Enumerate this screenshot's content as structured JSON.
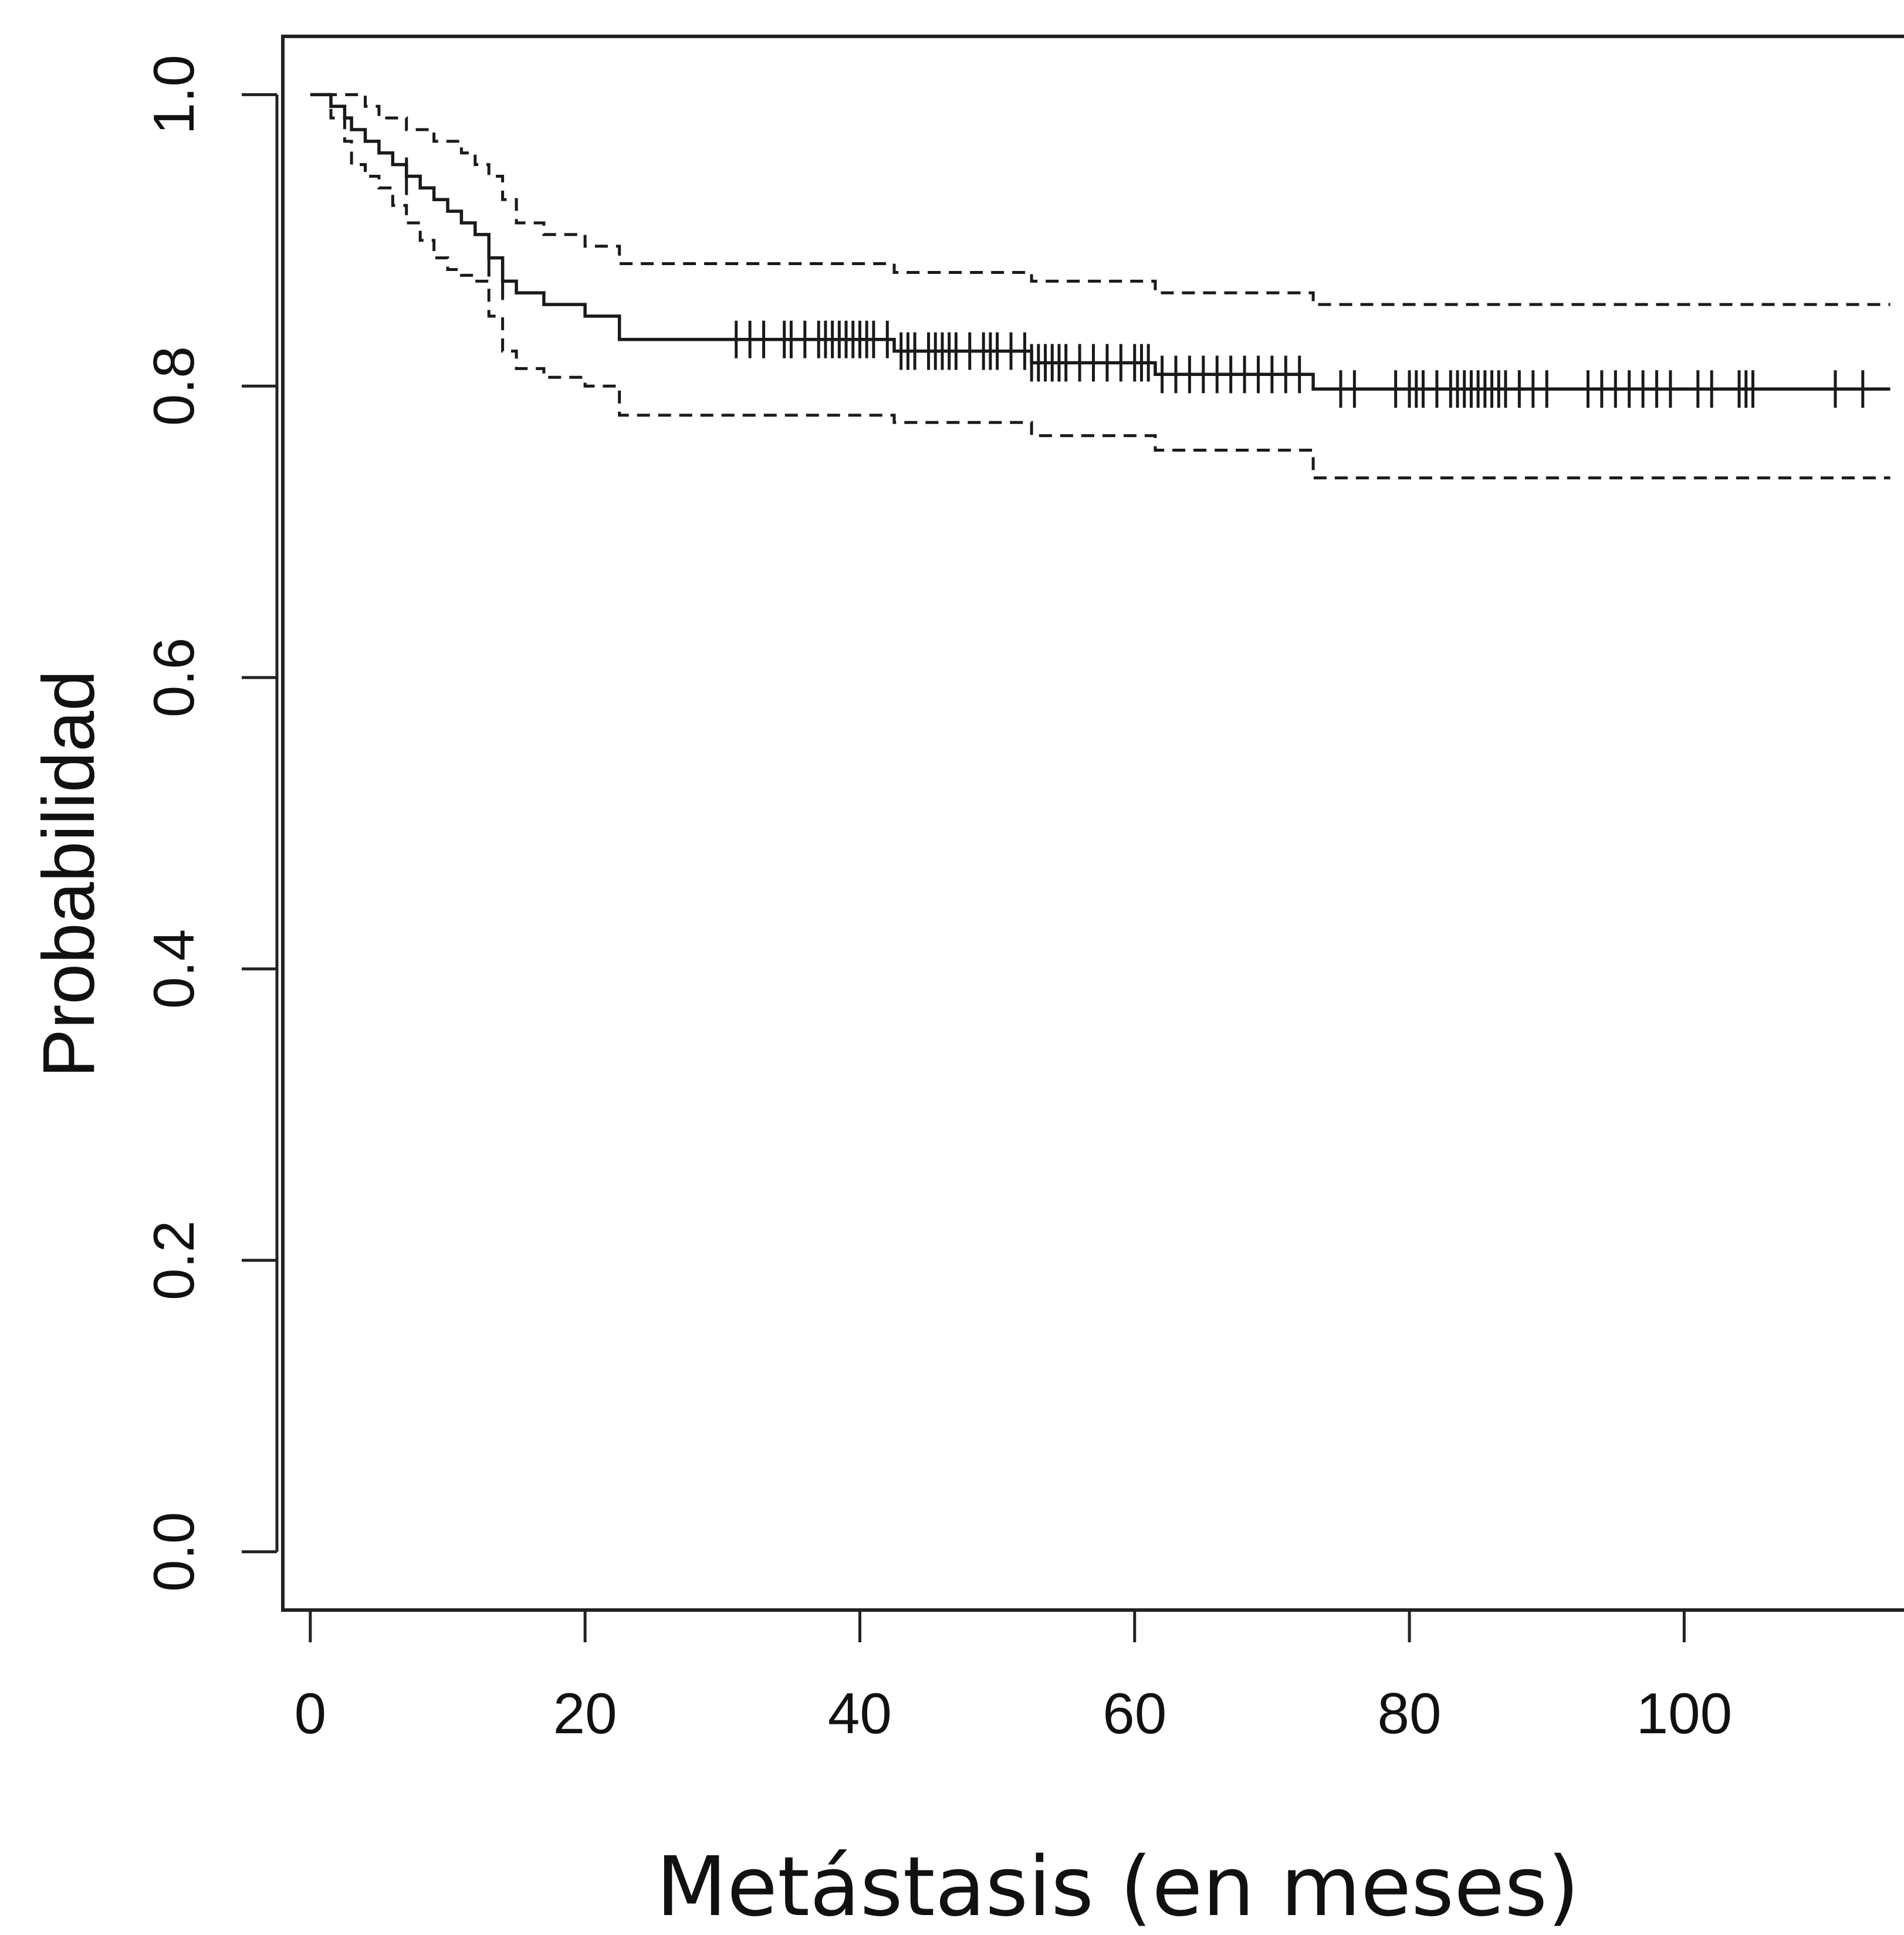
{
  "chart_data": {
    "type": "line",
    "subtype": "kaplan-meier",
    "title": "",
    "xlabel": "Metástasis (en meses)",
    "ylabel": "Probabilidad",
    "xlim": [
      -2,
      116
    ],
    "ylim": [
      -0.04,
      1.04
    ],
    "x_ticks": [
      0,
      20,
      40,
      60,
      80,
      100
    ],
    "x_tick_labels": [
      "0",
      "20",
      "40",
      "60",
      "80",
      "100"
    ],
    "y_ticks": [
      0.0,
      0.2,
      0.4,
      0.6,
      0.8,
      1.0
    ],
    "y_tick_labels": [
      "0.0",
      "0.2",
      "0.4",
      "0.6",
      "0.8",
      "1.0"
    ],
    "grid": false,
    "legend": "none",
    "series": [
      {
        "role": "estimate",
        "style": "solid",
        "points": [
          [
            0,
            1.0
          ],
          [
            1,
            1.0
          ],
          [
            1.5,
            0.992
          ],
          [
            2.5,
            0.984
          ],
          [
            3,
            0.976
          ],
          [
            4,
            0.968
          ],
          [
            5,
            0.96
          ],
          [
            6,
            0.952
          ],
          [
            7,
            0.944
          ],
          [
            8,
            0.936
          ],
          [
            9,
            0.928
          ],
          [
            10,
            0.92
          ],
          [
            11,
            0.912
          ],
          [
            12,
            0.904
          ],
          [
            13,
            0.888
          ],
          [
            14,
            0.872
          ],
          [
            15,
            0.864
          ],
          [
            17,
            0.856
          ],
          [
            20,
            0.848
          ],
          [
            22.5,
            0.832
          ],
          [
            42,
            0.832
          ],
          [
            42.5,
            0.824
          ],
          [
            52,
            0.824
          ],
          [
            52.5,
            0.816
          ],
          [
            61,
            0.816
          ],
          [
            61.5,
            0.808
          ],
          [
            72.5,
            0.808
          ],
          [
            73,
            0.798
          ],
          [
            115,
            0.798
          ]
        ]
      },
      {
        "role": "upper_ci",
        "style": "dashed",
        "points": [
          [
            1,
            1.0
          ],
          [
            3,
            1.0
          ],
          [
            4,
            0.992
          ],
          [
            5,
            0.984
          ],
          [
            7,
            0.976
          ],
          [
            9,
            0.968
          ],
          [
            11,
            0.96
          ],
          [
            12,
            0.952
          ],
          [
            13,
            0.944
          ],
          [
            14,
            0.928
          ],
          [
            15,
            0.912
          ],
          [
            17,
            0.904
          ],
          [
            20,
            0.896
          ],
          [
            22.5,
            0.884
          ],
          [
            42,
            0.884
          ],
          [
            42.5,
            0.878
          ],
          [
            52,
            0.878
          ],
          [
            52.5,
            0.872
          ],
          [
            61,
            0.872
          ],
          [
            61.5,
            0.864
          ],
          [
            72.5,
            0.864
          ],
          [
            73,
            0.856
          ],
          [
            115,
            0.856
          ]
        ]
      },
      {
        "role": "lower_ci",
        "style": "dashed",
        "points": [
          [
            1,
            1.0
          ],
          [
            1.5,
            0.984
          ],
          [
            2.5,
            0.968
          ],
          [
            3,
            0.952
          ],
          [
            4,
            0.944
          ],
          [
            5,
            0.936
          ],
          [
            6,
            0.924
          ],
          [
            7,
            0.912
          ],
          [
            8,
            0.9
          ],
          [
            9,
            0.888
          ],
          [
            10,
            0.88
          ],
          [
            11,
            0.876
          ],
          [
            12,
            0.872
          ],
          [
            13,
            0.848
          ],
          [
            14,
            0.824
          ],
          [
            15,
            0.812
          ],
          [
            17,
            0.806
          ],
          [
            20,
            0.8
          ],
          [
            22.5,
            0.78
          ],
          [
            42,
            0.78
          ],
          [
            42.5,
            0.775
          ],
          [
            52,
            0.775
          ],
          [
            52.5,
            0.766
          ],
          [
            61,
            0.766
          ],
          [
            61.5,
            0.756
          ],
          [
            72.5,
            0.756
          ],
          [
            73,
            0.737
          ],
          [
            115,
            0.737
          ]
        ]
      }
    ],
    "censor_times": [
      7,
      13,
      14,
      31,
      32,
      33,
      34.5,
      35,
      36,
      37,
      37.5,
      38,
      38.5,
      39,
      39.5,
      40,
      40.5,
      41,
      42,
      43,
      43.5,
      44,
      45,
      45.5,
      46,
      46.5,
      47,
      48,
      49,
      49.5,
      50,
      51,
      52,
      52.5,
      53,
      53.5,
      54,
      54.5,
      55,
      56,
      57,
      58,
      59,
      60,
      60.5,
      61,
      62,
      63,
      64,
      65,
      66,
      67,
      68,
      69,
      70,
      71,
      72,
      75,
      76,
      79,
      80,
      80.5,
      81,
      82,
      83,
      83.5,
      84,
      84.5,
      85,
      85.5,
      86,
      86.5,
      87,
      88,
      89,
      90,
      93,
      94,
      95,
      96,
      97,
      98,
      99,
      101,
      102,
      104,
      104.5,
      105,
      111,
      113
    ]
  }
}
